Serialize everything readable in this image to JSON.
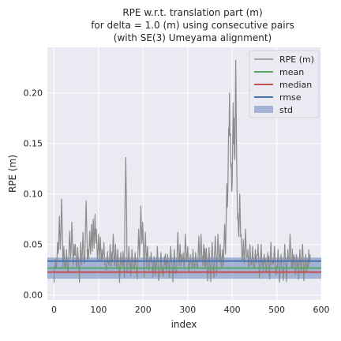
{
  "chart_data": {
    "type": "line",
    "title_lines": [
      "RPE w.r.t. translation part (m)",
      "for delta = 1.0 (m) using consecutive pairs",
      "(with SE(3) Umeyama alignment)"
    ],
    "xlabel": "index",
    "ylabel": "RPE (m)",
    "xlim": [
      -15,
      600
    ],
    "ylim": [
      -0.005,
      0.245
    ],
    "x_ticks": [
      0,
      100,
      200,
      300,
      400,
      500,
      600
    ],
    "y_ticks": [
      0.0,
      0.05,
      0.1,
      0.15,
      0.2
    ],
    "y_tick_labels": [
      "0.00",
      "0.05",
      "0.10",
      "0.15",
      "0.20"
    ],
    "grid": true,
    "legend_position": "top-right",
    "legend": [
      "RPE (m)",
      "mean",
      "median",
      "rmse",
      "std"
    ],
    "colors": {
      "background": "#eaeaf2",
      "grid": "#ffffff",
      "rpe": "#8c8c8c",
      "mean": "#55a868",
      "median": "#c44e52",
      "rmse": "#4c72b0",
      "std_fill": "#4c72b0"
    },
    "stats": {
      "mean": 0.0265,
      "median": 0.0225,
      "rmse": 0.0335,
      "std": 0.0105
    },
    "series": [
      {
        "name": "RPE (m)",
        "x_start": 0,
        "x_end": 575,
        "n": 576,
        "peaks": [
          [
            3,
            0.035
          ],
          [
            8,
            0.052
          ],
          [
            12,
            0.078
          ],
          [
            15,
            0.055
          ],
          [
            17,
            0.095
          ],
          [
            22,
            0.048
          ],
          [
            28,
            0.045
          ],
          [
            35,
            0.063
          ],
          [
            40,
            0.072
          ],
          [
            45,
            0.05
          ],
          [
            48,
            0.05
          ],
          [
            53,
            0.047
          ],
          [
            60,
            0.052
          ],
          [
            65,
            0.062
          ],
          [
            72,
            0.093
          ],
          [
            76,
            0.045
          ],
          [
            80,
            0.063
          ],
          [
            84,
            0.07
          ],
          [
            88,
            0.075
          ],
          [
            92,
            0.08
          ],
          [
            95,
            0.065
          ],
          [
            100,
            0.06
          ],
          [
            104,
            0.057
          ],
          [
            108,
            0.045
          ],
          [
            112,
            0.052
          ],
          [
            120,
            0.043
          ],
          [
            126,
            0.05
          ],
          [
            133,
            0.06
          ],
          [
            138,
            0.05
          ],
          [
            143,
            0.045
          ],
          [
            150,
            0.042
          ],
          [
            155,
            0.043
          ],
          [
            161,
            0.136
          ],
          [
            168,
            0.048
          ],
          [
            175,
            0.045
          ],
          [
            182,
            0.042
          ],
          [
            190,
            0.065
          ],
          [
            195,
            0.088
          ],
          [
            199,
            0.072
          ],
          [
            205,
            0.062
          ],
          [
            210,
            0.048
          ],
          [
            218,
            0.042
          ],
          [
            225,
            0.038
          ],
          [
            232,
            0.048
          ],
          [
            240,
            0.042
          ],
          [
            248,
            0.038
          ],
          [
            255,
            0.04
          ],
          [
            262,
            0.048
          ],
          [
            270,
            0.045
          ],
          [
            278,
            0.062
          ],
          [
            283,
            0.05
          ],
          [
            290,
            0.042
          ],
          [
            295,
            0.06
          ],
          [
            300,
            0.048
          ],
          [
            306,
            0.04
          ],
          [
            312,
            0.045
          ],
          [
            318,
            0.042
          ],
          [
            325,
            0.058
          ],
          [
            330,
            0.06
          ],
          [
            336,
            0.05
          ],
          [
            342,
            0.046
          ],
          [
            348,
            0.047
          ],
          [
            355,
            0.052
          ],
          [
            362,
            0.058
          ],
          [
            368,
            0.06
          ],
          [
            373,
            0.05
          ],
          [
            378,
            0.045
          ],
          [
            383,
            0.07
          ],
          [
            388,
            0.11
          ],
          [
            392,
            0.165
          ],
          [
            394,
            0.2
          ],
          [
            396,
            0.16
          ],
          [
            398,
            0.13
          ],
          [
            400,
            0.105
          ],
          [
            402,
            0.19
          ],
          [
            404,
            0.175
          ],
          [
            406,
            0.12
          ],
          [
            408,
            0.232
          ],
          [
            410,
            0.13
          ],
          [
            413,
            0.08
          ],
          [
            417,
            0.1
          ],
          [
            420,
            0.06
          ],
          [
            425,
            0.055
          ],
          [
            430,
            0.065
          ],
          [
            435,
            0.045
          ],
          [
            440,
            0.05
          ],
          [
            446,
            0.048
          ],
          [
            452,
            0.045
          ],
          [
            458,
            0.05
          ],
          [
            465,
            0.05
          ],
          [
            472,
            0.04
          ],
          [
            480,
            0.042
          ],
          [
            487,
            0.052
          ],
          [
            495,
            0.048
          ],
          [
            503,
            0.045
          ],
          [
            510,
            0.04
          ],
          [
            518,
            0.05
          ],
          [
            525,
            0.045
          ],
          [
            530,
            0.06
          ],
          [
            538,
            0.04
          ],
          [
            545,
            0.038
          ],
          [
            552,
            0.045
          ],
          [
            558,
            0.05
          ],
          [
            565,
            0.04
          ],
          [
            570,
            0.035
          ],
          [
            575,
            0.04
          ]
        ]
      }
    ]
  }
}
